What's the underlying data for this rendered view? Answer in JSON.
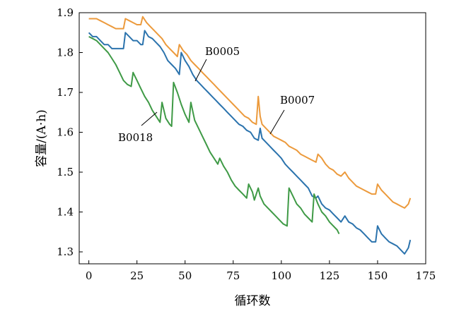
{
  "chart_data": {
    "type": "line",
    "title": "",
    "xlabel": "循环数",
    "ylabel": "容量/(A·h)",
    "xlim": [
      -5,
      175
    ],
    "ylim": [
      1.27,
      1.9
    ],
    "xticks": [
      0,
      25,
      50,
      75,
      100,
      125,
      150,
      175
    ],
    "yticks": [
      1.3,
      1.4,
      1.5,
      1.6,
      1.7,
      1.8,
      1.9
    ],
    "xtick_labels": [
      "0",
      "25",
      "50",
      "75",
      "100",
      "125",
      "150",
      "175"
    ],
    "ytick_labels": [
      "1.3",
      "1.4",
      "1.5",
      "1.6",
      "1.7",
      "1.8",
      "1.9"
    ],
    "grid": false,
    "legend": "none",
    "series": [
      {
        "name": "B0005",
        "color": "#2b73ad",
        "points": [
          [
            0,
            1.85
          ],
          [
            2,
            1.84
          ],
          [
            4,
            1.84
          ],
          [
            6,
            1.83
          ],
          [
            8,
            1.82
          ],
          [
            10,
            1.82
          ],
          [
            12,
            1.81
          ],
          [
            14,
            1.81
          ],
          [
            16,
            1.81
          ],
          [
            18,
            1.81
          ],
          [
            19,
            1.85
          ],
          [
            21,
            1.84
          ],
          [
            23,
            1.83
          ],
          [
            25,
            1.83
          ],
          [
            27,
            1.82
          ],
          [
            28,
            1.82
          ],
          [
            29,
            1.855
          ],
          [
            31,
            1.84
          ],
          [
            33,
            1.835
          ],
          [
            35,
            1.825
          ],
          [
            37,
            1.815
          ],
          [
            39,
            1.8
          ],
          [
            41,
            1.78
          ],
          [
            43,
            1.77
          ],
          [
            45,
            1.76
          ],
          [
            47,
            1.745
          ],
          [
            48,
            1.8
          ],
          [
            50,
            1.78
          ],
          [
            52,
            1.765
          ],
          [
            54,
            1.745
          ],
          [
            56,
            1.73
          ],
          [
            58,
            1.72
          ],
          [
            60,
            1.71
          ],
          [
            62,
            1.7
          ],
          [
            64,
            1.69
          ],
          [
            66,
            1.68
          ],
          [
            68,
            1.67
          ],
          [
            70,
            1.66
          ],
          [
            72,
            1.65
          ],
          [
            74,
            1.64
          ],
          [
            76,
            1.63
          ],
          [
            78,
            1.62
          ],
          [
            80,
            1.615
          ],
          [
            82,
            1.605
          ],
          [
            84,
            1.6
          ],
          [
            86,
            1.585
          ],
          [
            88,
            1.58
          ],
          [
            89,
            1.61
          ],
          [
            90,
            1.585
          ],
          [
            92,
            1.575
          ],
          [
            94,
            1.565
          ],
          [
            96,
            1.555
          ],
          [
            98,
            1.545
          ],
          [
            100,
            1.535
          ],
          [
            102,
            1.52
          ],
          [
            104,
            1.51
          ],
          [
            106,
            1.5
          ],
          [
            108,
            1.49
          ],
          [
            110,
            1.48
          ],
          [
            112,
            1.47
          ],
          [
            114,
            1.46
          ],
          [
            116,
            1.44
          ],
          [
            118,
            1.435
          ],
          [
            119,
            1.44
          ],
          [
            121,
            1.42
          ],
          [
            123,
            1.41
          ],
          [
            125,
            1.405
          ],
          [
            127,
            1.395
          ],
          [
            129,
            1.385
          ],
          [
            131,
            1.375
          ],
          [
            133,
            1.39
          ],
          [
            135,
            1.375
          ],
          [
            137,
            1.37
          ],
          [
            139,
            1.36
          ],
          [
            141,
            1.355
          ],
          [
            143,
            1.345
          ],
          [
            145,
            1.335
          ],
          [
            147,
            1.325
          ],
          [
            149,
            1.325
          ],
          [
            150,
            1.365
          ],
          [
            152,
            1.345
          ],
          [
            154,
            1.335
          ],
          [
            156,
            1.325
          ],
          [
            158,
            1.32
          ],
          [
            160,
            1.315
          ],
          [
            162,
            1.305
          ],
          [
            164,
            1.295
          ],
          [
            166,
            1.31
          ],
          [
            167,
            1.33
          ]
        ]
      },
      {
        "name": "B0007",
        "color": "#ec9a3c",
        "points": [
          [
            0,
            1.885
          ],
          [
            2,
            1.885
          ],
          [
            4,
            1.885
          ],
          [
            6,
            1.88
          ],
          [
            8,
            1.875
          ],
          [
            10,
            1.87
          ],
          [
            12,
            1.865
          ],
          [
            14,
            1.86
          ],
          [
            16,
            1.86
          ],
          [
            18,
            1.86
          ],
          [
            19,
            1.885
          ],
          [
            21,
            1.88
          ],
          [
            23,
            1.875
          ],
          [
            25,
            1.87
          ],
          [
            27,
            1.87
          ],
          [
            28,
            1.89
          ],
          [
            30,
            1.875
          ],
          [
            32,
            1.865
          ],
          [
            34,
            1.855
          ],
          [
            36,
            1.845
          ],
          [
            38,
            1.835
          ],
          [
            40,
            1.82
          ],
          [
            42,
            1.81
          ],
          [
            44,
            1.8
          ],
          [
            46,
            1.79
          ],
          [
            47,
            1.82
          ],
          [
            49,
            1.805
          ],
          [
            51,
            1.795
          ],
          [
            53,
            1.78
          ],
          [
            55,
            1.77
          ],
          [
            57,
            1.76
          ],
          [
            59,
            1.75
          ],
          [
            61,
            1.74
          ],
          [
            63,
            1.73
          ],
          [
            65,
            1.72
          ],
          [
            67,
            1.71
          ],
          [
            69,
            1.7
          ],
          [
            71,
            1.69
          ],
          [
            73,
            1.68
          ],
          [
            75,
            1.67
          ],
          [
            77,
            1.66
          ],
          [
            79,
            1.65
          ],
          [
            81,
            1.64
          ],
          [
            83,
            1.635
          ],
          [
            85,
            1.625
          ],
          [
            87,
            1.62
          ],
          [
            88,
            1.69
          ],
          [
            89,
            1.64
          ],
          [
            90,
            1.62
          ],
          [
            92,
            1.61
          ],
          [
            94,
            1.6
          ],
          [
            96,
            1.59
          ],
          [
            98,
            1.585
          ],
          [
            100,
            1.58
          ],
          [
            102,
            1.575
          ],
          [
            104,
            1.565
          ],
          [
            106,
            1.56
          ],
          [
            108,
            1.555
          ],
          [
            110,
            1.545
          ],
          [
            112,
            1.54
          ],
          [
            114,
            1.535
          ],
          [
            116,
            1.53
          ],
          [
            118,
            1.525
          ],
          [
            119,
            1.545
          ],
          [
            121,
            1.535
          ],
          [
            123,
            1.52
          ],
          [
            125,
            1.51
          ],
          [
            127,
            1.505
          ],
          [
            129,
            1.495
          ],
          [
            131,
            1.49
          ],
          [
            133,
            1.5
          ],
          [
            135,
            1.485
          ],
          [
            137,
            1.475
          ],
          [
            139,
            1.465
          ],
          [
            141,
            1.46
          ],
          [
            143,
            1.455
          ],
          [
            145,
            1.45
          ],
          [
            147,
            1.445
          ],
          [
            149,
            1.445
          ],
          [
            150,
            1.47
          ],
          [
            152,
            1.455
          ],
          [
            154,
            1.445
          ],
          [
            156,
            1.435
          ],
          [
            158,
            1.425
          ],
          [
            160,
            1.42
          ],
          [
            162,
            1.415
          ],
          [
            164,
            1.41
          ],
          [
            166,
            1.42
          ],
          [
            167,
            1.435
          ]
        ]
      },
      {
        "name": "B0018",
        "color": "#3f9a46",
        "points": [
          [
            0,
            1.84
          ],
          [
            2,
            1.835
          ],
          [
            4,
            1.83
          ],
          [
            6,
            1.82
          ],
          [
            8,
            1.81
          ],
          [
            10,
            1.8
          ],
          [
            12,
            1.785
          ],
          [
            14,
            1.77
          ],
          [
            16,
            1.75
          ],
          [
            18,
            1.73
          ],
          [
            20,
            1.72
          ],
          [
            22,
            1.715
          ],
          [
            23,
            1.75
          ],
          [
            25,
            1.73
          ],
          [
            27,
            1.71
          ],
          [
            29,
            1.69
          ],
          [
            31,
            1.675
          ],
          [
            33,
            1.655
          ],
          [
            35,
            1.64
          ],
          [
            37,
            1.625
          ],
          [
            38,
            1.675
          ],
          [
            40,
            1.635
          ],
          [
            42,
            1.62
          ],
          [
            43,
            1.615
          ],
          [
            44,
            1.725
          ],
          [
            46,
            1.7
          ],
          [
            48,
            1.67
          ],
          [
            50,
            1.645
          ],
          [
            52,
            1.625
          ],
          [
            53,
            1.675
          ],
          [
            55,
            1.63
          ],
          [
            57,
            1.61
          ],
          [
            59,
            1.59
          ],
          [
            61,
            1.57
          ],
          [
            63,
            1.55
          ],
          [
            65,
            1.535
          ],
          [
            67,
            1.52
          ],
          [
            68,
            1.535
          ],
          [
            70,
            1.515
          ],
          [
            72,
            1.5
          ],
          [
            74,
            1.48
          ],
          [
            76,
            1.465
          ],
          [
            78,
            1.455
          ],
          [
            80,
            1.445
          ],
          [
            82,
            1.435
          ],
          [
            83,
            1.47
          ],
          [
            85,
            1.45
          ],
          [
            86,
            1.43
          ],
          [
            88,
            1.46
          ],
          [
            89,
            1.44
          ],
          [
            91,
            1.42
          ],
          [
            93,
            1.41
          ],
          [
            95,
            1.4
          ],
          [
            97,
            1.39
          ],
          [
            99,
            1.38
          ],
          [
            101,
            1.37
          ],
          [
            103,
            1.365
          ],
          [
            104,
            1.46
          ],
          [
            106,
            1.44
          ],
          [
            108,
            1.42
          ],
          [
            110,
            1.41
          ],
          [
            112,
            1.395
          ],
          [
            114,
            1.385
          ],
          [
            116,
            1.375
          ],
          [
            117,
            1.445
          ],
          [
            119,
            1.42
          ],
          [
            121,
            1.4
          ],
          [
            123,
            1.39
          ],
          [
            125,
            1.375
          ],
          [
            127,
            1.365
          ],
          [
            129,
            1.355
          ],
          [
            130,
            1.345
          ]
        ]
      }
    ],
    "annotations": [
      {
        "text": "B0005",
        "series": "B0005"
      },
      {
        "text": "B0007",
        "series": "B0007"
      },
      {
        "text": "B0018",
        "series": "B0018"
      }
    ]
  }
}
